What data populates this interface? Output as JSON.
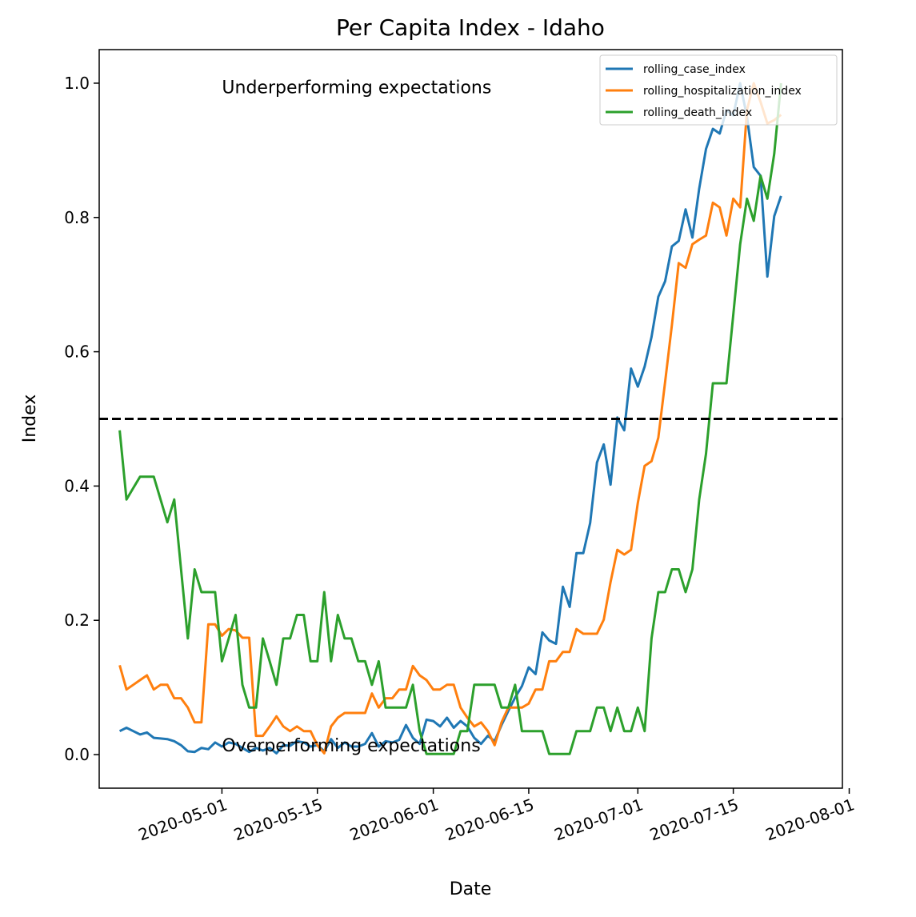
{
  "chart_data": {
    "type": "line",
    "title": "Per Capita Index - Idaho",
    "xlabel": "Date",
    "ylabel": "Index",
    "x_start_date": "2020-04-16",
    "xlim": [
      "2020-04-13",
      "2020-07-31"
    ],
    "ylim": [
      -0.05,
      1.05
    ],
    "x_ticks": [
      "2020-05-01",
      "2020-05-15",
      "2020-06-01",
      "2020-06-15",
      "2020-07-01",
      "2020-07-15",
      "2020-08-01"
    ],
    "y_ticks": [
      "0.0",
      "0.2",
      "0.4",
      "0.6",
      "0.8",
      "1.0"
    ],
    "legend_position": "top-right",
    "reference_line": {
      "y": 0.5,
      "style": "dashed",
      "color": "#000000"
    },
    "annotations": [
      {
        "text": "Underperforming expectations",
        "x": "2020-05-01",
        "y": 0.985
      },
      {
        "text": "Overperforming expectations",
        "x": "2020-05-01",
        "y": 0.005
      }
    ],
    "series": [
      {
        "name": "rolling_case_index",
        "color": "#1f77b4",
        "values": [
          0.035,
          0.04,
          0.035,
          0.03,
          0.033,
          0.025,
          0.024,
          0.023,
          0.02,
          0.014,
          0.005,
          0.004,
          0.01,
          0.008,
          0.018,
          0.012,
          0.018,
          0.016,
          0.01,
          0.004,
          0.01,
          0.006,
          0.01,
          0.002,
          0.014,
          0.013,
          0.02,
          0.018,
          0.012,
          0.014,
          0.005,
          0.023,
          0.01,
          0.018,
          0.012,
          0.012,
          0.016,
          0.032,
          0.012,
          0.02,
          0.018,
          0.022,
          0.044,
          0.025,
          0.016,
          0.052,
          0.05,
          0.042,
          0.055,
          0.04,
          0.05,
          0.042,
          0.025,
          0.016,
          0.028,
          0.02,
          0.044,
          0.065,
          0.085,
          0.102,
          0.13,
          0.12,
          0.182,
          0.17,
          0.165,
          0.25,
          0.22,
          0.3,
          0.3,
          0.345,
          0.435,
          0.462,
          0.402,
          0.502,
          0.483,
          0.575,
          0.548,
          0.578,
          0.622,
          0.682,
          0.705,
          0.757,
          0.765,
          0.812,
          0.77,
          0.843,
          0.902,
          0.932,
          0.925,
          0.96,
          0.952,
          1.0,
          0.95,
          0.875,
          0.862,
          0.712,
          0.802,
          0.832
        ]
      },
      {
        "name": "rolling_hospitalization_index",
        "color": "#ff7f0e",
        "values": [
          0.133,
          0.097,
          0.104,
          0.111,
          0.118,
          0.097,
          0.104,
          0.104,
          0.084,
          0.084,
          0.07,
          0.048,
          0.048,
          0.194,
          0.194,
          0.177,
          0.187,
          0.185,
          0.174,
          0.174,
          0.028,
          0.028,
          0.042,
          0.057,
          0.042,
          0.035,
          0.042,
          0.035,
          0.035,
          0.014,
          0.002,
          0.042,
          0.055,
          0.062,
          0.062,
          0.062,
          0.062,
          0.091,
          0.07,
          0.084,
          0.084,
          0.097,
          0.097,
          0.132,
          0.118,
          0.111,
          0.097,
          0.097,
          0.104,
          0.104,
          0.07,
          0.055,
          0.042,
          0.048,
          0.035,
          0.014,
          0.048,
          0.07,
          0.07,
          0.07,
          0.076,
          0.097,
          0.097,
          0.139,
          0.139,
          0.153,
          0.153,
          0.187,
          0.18,
          0.18,
          0.18,
          0.201,
          0.257,
          0.305,
          0.298,
          0.305,
          0.375,
          0.43,
          0.437,
          0.472,
          0.555,
          0.64,
          0.732,
          0.725,
          0.76,
          0.767,
          0.773,
          0.822,
          0.815,
          0.773,
          0.828,
          0.815,
          0.96,
          1.0,
          0.972,
          0.94,
          0.945,
          0.953
        ]
      },
      {
        "name": "rolling_death_index",
        "color": "#2ca02c",
        "values": [
          0.483,
          0.38,
          0.397,
          0.414,
          0.414,
          0.414,
          0.38,
          0.346,
          0.38,
          0.276,
          0.173,
          0.276,
          0.242,
          0.242,
          0.242,
          0.139,
          0.173,
          0.208,
          0.104,
          0.07,
          0.07,
          0.173,
          0.139,
          0.104,
          0.173,
          0.173,
          0.208,
          0.208,
          0.139,
          0.139,
          0.242,
          0.139,
          0.208,
          0.173,
          0.173,
          0.139,
          0.139,
          0.104,
          0.139,
          0.07,
          0.07,
          0.07,
          0.07,
          0.104,
          0.035,
          0.001,
          0.001,
          0.001,
          0.001,
          0.001,
          0.035,
          0.035,
          0.104,
          0.104,
          0.104,
          0.104,
          0.07,
          0.07,
          0.104,
          0.035,
          0.035,
          0.035,
          0.035,
          0.001,
          0.001,
          0.001,
          0.001,
          0.035,
          0.035,
          0.035,
          0.07,
          0.07,
          0.035,
          0.07,
          0.035,
          0.035,
          0.07,
          0.035,
          0.173,
          0.242,
          0.242,
          0.276,
          0.276,
          0.242,
          0.276,
          0.38,
          0.448,
          0.553,
          0.553,
          0.553,
          0.655,
          0.76,
          0.828,
          0.795,
          0.862,
          0.828,
          0.895,
          1.0
        ]
      }
    ]
  }
}
